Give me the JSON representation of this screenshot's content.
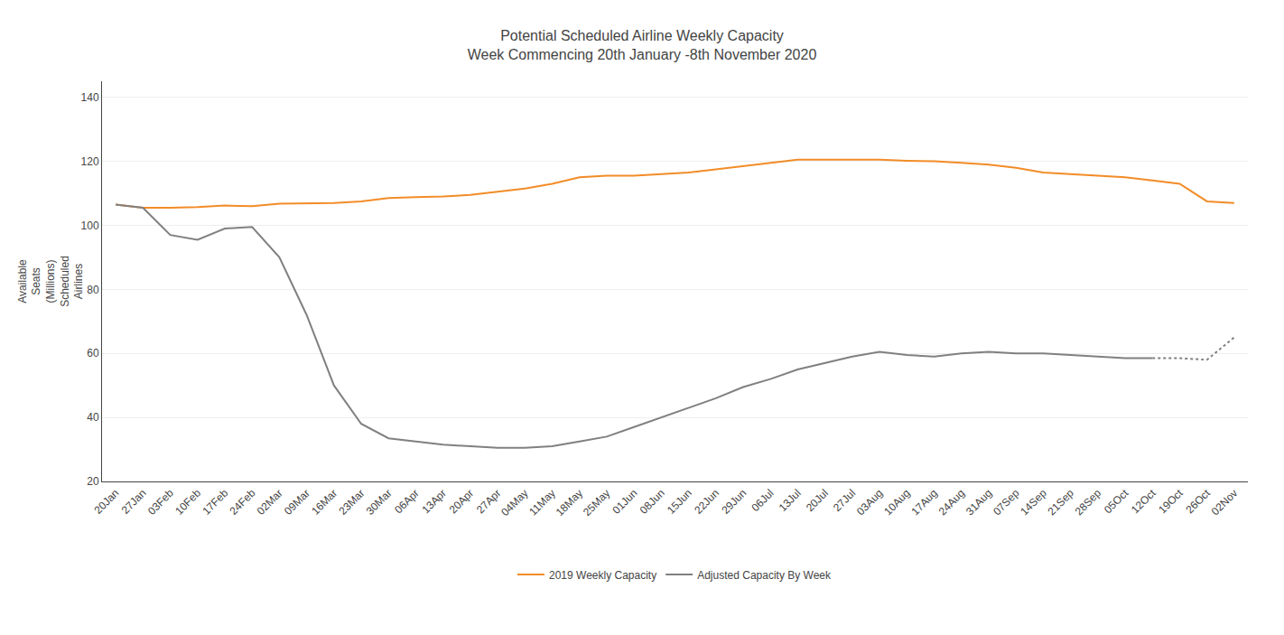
{
  "chart_data": {
    "type": "line",
    "title": "Potential Scheduled Airline Weekly Capacity",
    "subtitle": "Week Commencing 20th January -8th November 2020",
    "ylabel": "Available\nSeats\n(Millions)\nScheduled\nAirlines",
    "categories": [
      "20Jan",
      "27Jan",
      "03Feb",
      "10Feb",
      "17Feb",
      "24Feb",
      "02Mar",
      "09Mar",
      "16Mar",
      "23Mar",
      "30Mar",
      "06Apr",
      "13Apr",
      "20Apr",
      "27Apr",
      "04May",
      "11May",
      "18May",
      "25May",
      "01Jun",
      "08Jun",
      "15Jun",
      "22Jun",
      "29Jun",
      "06Jul",
      "13Jul",
      "20Jul",
      "27Jul",
      "03Aug",
      "10Aug",
      "17Aug",
      "24Aug",
      "31Aug",
      "07Sep",
      "14Sep",
      "21Sep",
      "28Sep",
      "05Oct",
      "12Oct",
      "19Oct",
      "26Oct",
      "02Nov"
    ],
    "series": [
      {
        "name": "2019 Weekly Capacity",
        "color": "#F28C28",
        "line_style": "solid",
        "values": [
          106.5,
          105.5,
          105.5,
          105.7,
          106.2,
          106.0,
          106.8,
          107.0,
          107.0,
          107.5,
          108.5,
          108.8,
          109.0,
          109.5,
          110.5,
          111.5,
          113.0,
          115.0,
          115.5,
          115.5,
          116.0,
          116.5,
          117.5,
          118.5,
          119.5,
          120.5,
          120.5,
          120.5,
          120.5,
          120.2,
          120.0,
          119.5,
          119.0,
          118.0,
          116.5,
          116.0,
          115.5,
          115.0,
          114.0,
          113.0,
          107.5,
          107.0
        ]
      },
      {
        "name": "Adjusted Capacity By Week",
        "color": "#808080",
        "line_style": "solid",
        "values": [
          106.5,
          105.5,
          97.0,
          95.5,
          99.0,
          99.5,
          90.0,
          72.0,
          50.0,
          38.0,
          33.5,
          32.5,
          31.5,
          31.0,
          30.5,
          30.5,
          31.0,
          32.5,
          34.0,
          37.0,
          40.0,
          43.0,
          46.0,
          49.5,
          52.0,
          55.0,
          57.0,
          59.0,
          60.5,
          59.5,
          59.0,
          60.0,
          60.5,
          60.0,
          60.0,
          59.5,
          59.0,
          58.5,
          58.5,
          null,
          null,
          null
        ]
      },
      {
        "name": "Adjusted Capacity By Week",
        "color": "#808080",
        "line_style": "dotted",
        "values": [
          null,
          null,
          null,
          null,
          null,
          null,
          null,
          null,
          null,
          null,
          null,
          null,
          null,
          null,
          null,
          null,
          null,
          null,
          null,
          null,
          null,
          null,
          null,
          null,
          null,
          null,
          null,
          null,
          null,
          null,
          null,
          null,
          null,
          null,
          null,
          null,
          null,
          null,
          58.5,
          58.5,
          58.0,
          65.0
        ]
      }
    ],
    "ylim": [
      20,
      145
    ],
    "yticks": [
      20,
      40,
      60,
      80,
      100,
      120,
      140
    ],
    "grid": true,
    "legend": "bottom"
  }
}
